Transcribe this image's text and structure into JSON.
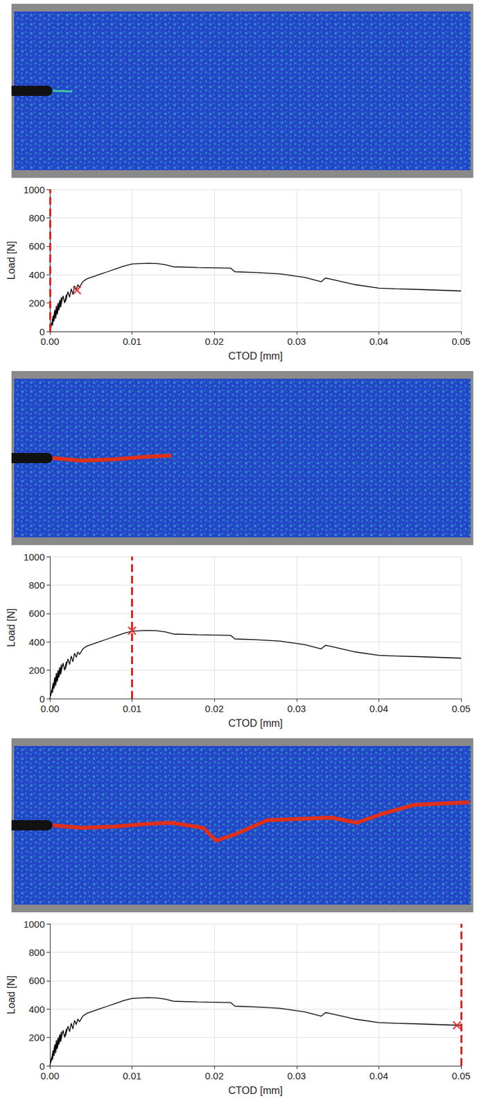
{
  "chart_data": [
    {
      "type": "line",
      "x_label": "CTOD [mm]",
      "y_label": "Load [N]",
      "x": [
        0,
        0.0002,
        0.0001,
        0.0004,
        0.0003,
        0.0006,
        0.0005,
        0.0008,
        0.0007,
        0.001,
        0.0009,
        0.0012,
        0.0011,
        0.0014,
        0.0013,
        0.0016,
        0.0018,
        0.002,
        0.0019,
        0.0022,
        0.0024,
        0.0026,
        0.0028,
        0.003,
        0.0032,
        0.0034,
        0.0036,
        0.004,
        0.0045,
        0.005,
        0.006,
        0.007,
        0.008,
        0.009,
        0.01,
        0.011,
        0.012,
        0.013,
        0.014,
        0.015,
        0.018,
        0.022,
        0.0225,
        0.025,
        0.028,
        0.031,
        0.033,
        0.0335,
        0.034,
        0.037,
        0.04,
        0.042,
        0.045,
        0.05
      ],
      "values": [
        0,
        60,
        20,
        110,
        40,
        150,
        70,
        180,
        90,
        200,
        120,
        220,
        150,
        240,
        170,
        250,
        200,
        260,
        210,
        280,
        240,
        300,
        260,
        320,
        290,
        330,
        310,
        350,
        370,
        380,
        400,
        420,
        440,
        460,
        475,
        478,
        480,
        478,
        470,
        455,
        450,
        445,
        420,
        415,
        405,
        380,
        350,
        375,
        370,
        330,
        305,
        300,
        295,
        285
      ],
      "color": "#000000",
      "current": {
        "x": 0.0033,
        "y": 290,
        "color": "#e02020",
        "line_style": "dashed",
        "marker": "x"
      },
      "xlim": [
        0,
        0.05
      ],
      "xticks": [
        {
          "value": 0,
          "label": "0.00"
        },
        0.01,
        0.02,
        0.03,
        0.04,
        0.05
      ],
      "ylim": [
        0,
        1000
      ],
      "yticks": [
        0,
        200,
        400,
        600,
        800,
        1000
      ],
      "grid": true
    },
    {
      "type": "line",
      "x_label": "CTOD [mm]",
      "y_label": "Load [N]",
      "x": [
        0,
        0.0002,
        0.0001,
        0.0004,
        0.0003,
        0.0006,
        0.0005,
        0.0008,
        0.0007,
        0.001,
        0.0009,
        0.0012,
        0.0011,
        0.0014,
        0.0013,
        0.0016,
        0.0018,
        0.002,
        0.0019,
        0.0022,
        0.0024,
        0.0026,
        0.0028,
        0.003,
        0.0032,
        0.0034,
        0.0036,
        0.004,
        0.0045,
        0.005,
        0.006,
        0.007,
        0.008,
        0.009,
        0.01,
        0.011,
        0.012,
        0.013,
        0.014,
        0.015,
        0.018,
        0.022,
        0.0225,
        0.025,
        0.028,
        0.031,
        0.033,
        0.0335,
        0.034,
        0.037,
        0.04,
        0.042,
        0.045,
        0.05
      ],
      "values": [
        0,
        60,
        20,
        110,
        40,
        150,
        70,
        180,
        90,
        200,
        120,
        220,
        150,
        240,
        170,
        250,
        200,
        260,
        210,
        280,
        240,
        300,
        260,
        320,
        290,
        330,
        310,
        350,
        370,
        380,
        400,
        420,
        440,
        460,
        475,
        478,
        480,
        478,
        470,
        455,
        450,
        445,
        420,
        415,
        405,
        380,
        350,
        375,
        370,
        330,
        305,
        300,
        295,
        285
      ],
      "color": "#000000",
      "current": {
        "x": 0.01,
        "y": 478,
        "color": "#e02020",
        "line_style": "dashed",
        "marker": "x"
      },
      "xlim": [
        0,
        0.05
      ],
      "xticks": [
        {
          "value": 0,
          "label": "0.00"
        },
        0.01,
        0.02,
        0.03,
        0.04,
        0.05
      ],
      "ylim": [
        0,
        1000
      ],
      "yticks": [
        0,
        200,
        400,
        600,
        800,
        1000
      ],
      "grid": true
    },
    {
      "type": "line",
      "x_label": "CTOD [mm]",
      "y_label": "Load [N]",
      "x": [
        0,
        0.0002,
        0.0001,
        0.0004,
        0.0003,
        0.0006,
        0.0005,
        0.0008,
        0.0007,
        0.001,
        0.0009,
        0.0012,
        0.0011,
        0.0014,
        0.0013,
        0.0016,
        0.0018,
        0.002,
        0.0019,
        0.0022,
        0.0024,
        0.0026,
        0.0028,
        0.003,
        0.0032,
        0.0034,
        0.0036,
        0.004,
        0.0045,
        0.005,
        0.006,
        0.007,
        0.008,
        0.009,
        0.01,
        0.011,
        0.012,
        0.013,
        0.014,
        0.015,
        0.018,
        0.022,
        0.0225,
        0.025,
        0.028,
        0.031,
        0.033,
        0.0335,
        0.034,
        0.037,
        0.04,
        0.042,
        0.045,
        0.05
      ],
      "values": [
        0,
        60,
        20,
        110,
        40,
        150,
        70,
        180,
        90,
        200,
        120,
        220,
        150,
        240,
        170,
        250,
        200,
        260,
        210,
        280,
        240,
        300,
        260,
        320,
        290,
        330,
        310,
        350,
        370,
        380,
        400,
        420,
        440,
        460,
        475,
        478,
        480,
        478,
        470,
        455,
        450,
        445,
        420,
        415,
        405,
        380,
        350,
        375,
        370,
        330,
        305,
        300,
        295,
        285
      ],
      "color": "#000000",
      "current": {
        "x": 0.0495,
        "y": 285,
        "color": "#e02020",
        "line_style": "dashed",
        "marker": "x"
      },
      "xlim": [
        0,
        0.05
      ],
      "xticks": [
        {
          "value": 0,
          "label": "0.00"
        },
        0.01,
        0.02,
        0.03,
        0.04,
        0.05
      ],
      "ylim": [
        0,
        1000
      ],
      "yticks": [
        0,
        200,
        400,
        600,
        800,
        1000
      ],
      "grid": true
    }
  ]
}
